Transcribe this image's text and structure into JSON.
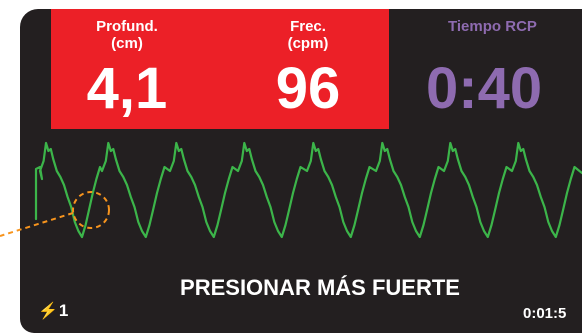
{
  "metrics": {
    "depth": {
      "label": "Profund.\n(cm)",
      "value": "4,1"
    },
    "rate": {
      "label": "Frec.\n(cpm)",
      "value": "96"
    },
    "cpr_time": {
      "label": "Tiempo RCP",
      "value": "0:40"
    }
  },
  "prompt": "PRESIONAR MÁS FUERTE",
  "shock": {
    "icon": "lightning-bolt-icon",
    "count": "1"
  },
  "elapsed_time": "0:01:5",
  "colors": {
    "panel_red": "#ec2027",
    "cpr_time_purple": "#8e6bb0",
    "waveform_green": "#3cb54a",
    "callout_orange": "#f7941d",
    "background": "#231f20"
  }
}
